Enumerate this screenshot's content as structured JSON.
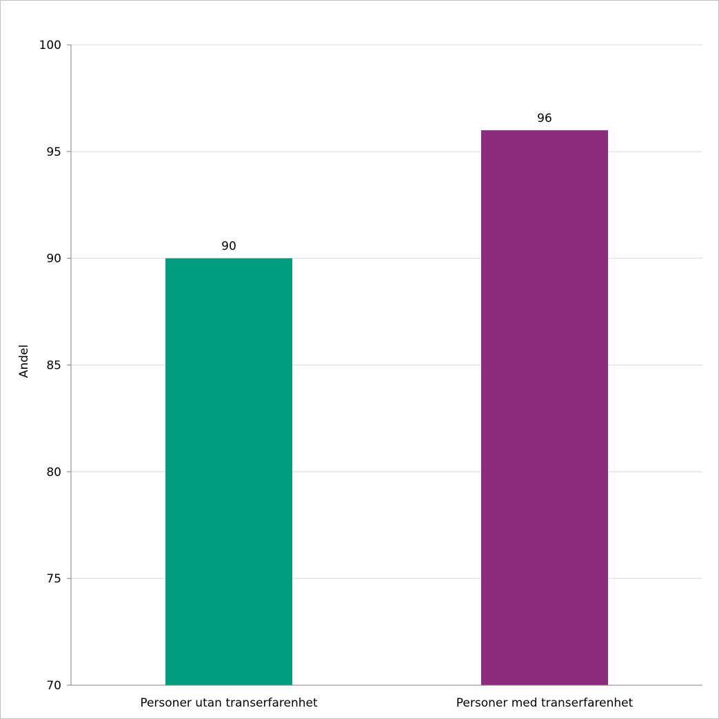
{
  "chart_data": {
    "type": "bar",
    "categories": [
      "Personer utan transerfarenhet",
      "Personer med transerfarenhet"
    ],
    "values": [
      90,
      96
    ],
    "data_labels": [
      "90",
      "96"
    ],
    "colors": [
      "#009e7e",
      "#8b2d7c"
    ],
    "ylabel": "Andel",
    "ylim": [
      70,
      100
    ],
    "yticks": [
      70,
      75,
      80,
      85,
      90,
      95,
      100
    ],
    "grid": true,
    "legend": "none"
  }
}
